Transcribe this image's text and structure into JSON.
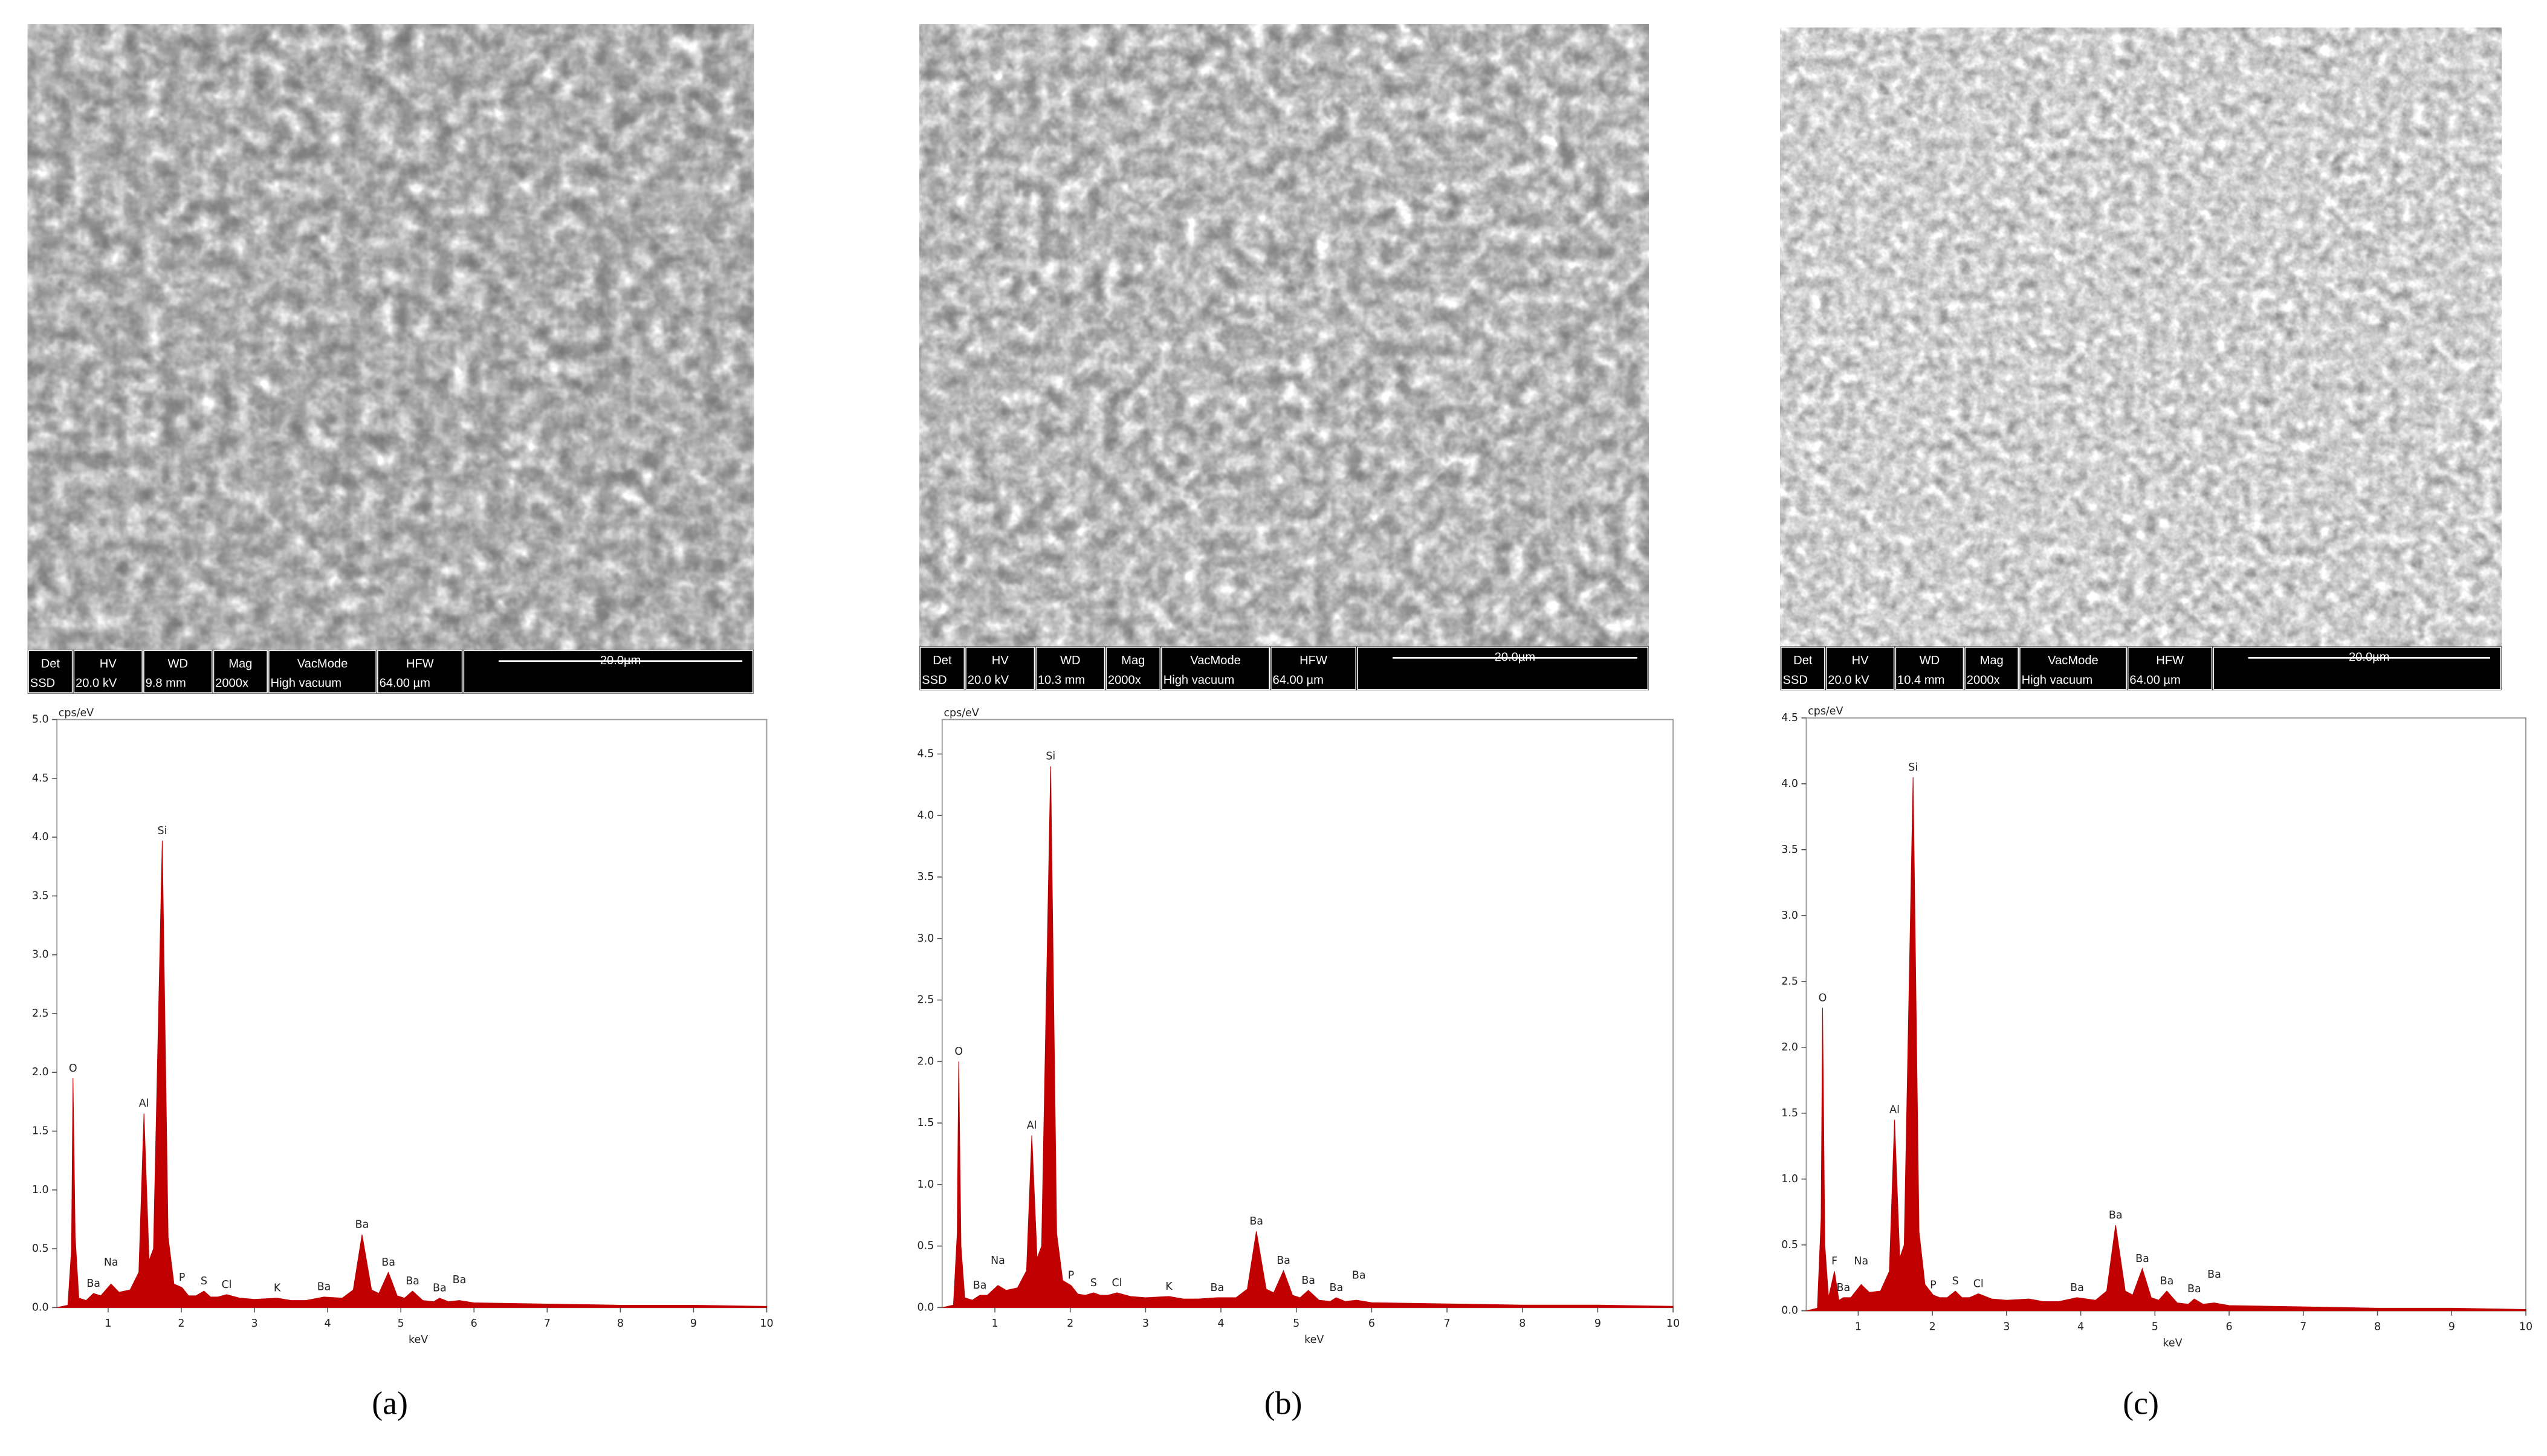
{
  "chart_data": [
    {
      "type": "area",
      "panel_label": "(a)",
      "color": "#c00000",
      "y_label": "cps/eV",
      "x_label": "keV",
      "sem_info": {
        "headers": [
          "Det",
          "HV",
          "WD",
          "Mag",
          "VacMode",
          "HFW"
        ],
        "values": [
          "SSD",
          "20.0 kV",
          "9.8 mm",
          "2000x",
          "High vacuum",
          "64.00 µm"
        ],
        "scale": "20.0µm"
      },
      "xlim": [
        0.3,
        10
      ],
      "xticks": [
        1,
        2,
        3,
        4,
        5,
        6,
        7,
        8,
        9,
        10
      ],
      "ylim": [
        0,
        5
      ],
      "yticks": [
        {
          "value": 0,
          "label": "0.0"
        },
        0.5,
        {
          "value": 1,
          "label": "1.0"
        },
        1.5,
        {
          "value": 2,
          "label": "2.0"
        },
        2.5,
        {
          "value": 3,
          "label": "3.0"
        },
        3.5,
        {
          "value": 4,
          "label": "4.0"
        },
        4.5,
        {
          "value": 5,
          "label": "5.0"
        }
      ],
      "x": [
        0.3,
        0.45,
        0.5,
        0.52,
        0.55,
        0.6,
        0.7,
        0.8,
        0.9,
        1.04,
        1.15,
        1.3,
        1.42,
        1.49,
        1.56,
        1.62,
        1.74,
        1.82,
        1.9,
        2.01,
        2.1,
        2.2,
        2.31,
        2.4,
        2.5,
        2.62,
        2.8,
        3.0,
        3.31,
        3.5,
        3.7,
        3.95,
        4.2,
        4.35,
        4.47,
        4.6,
        4.7,
        4.83,
        4.95,
        5.05,
        5.16,
        5.3,
        5.45,
        5.53,
        5.65,
        5.8,
        6,
        7,
        8,
        9,
        10
      ],
      "values": [
        0,
        0.02,
        0.5,
        1.95,
        0.6,
        0.08,
        0.06,
        0.12,
        0.1,
        0.2,
        0.13,
        0.15,
        0.3,
        1.65,
        0.4,
        0.5,
        3.97,
        0.6,
        0.2,
        0.17,
        0.1,
        0.1,
        0.14,
        0.09,
        0.09,
        0.11,
        0.08,
        0.07,
        0.08,
        0.06,
        0.06,
        0.09,
        0.08,
        0.15,
        0.62,
        0.15,
        0.12,
        0.3,
        0.1,
        0.08,
        0.14,
        0.06,
        0.05,
        0.08,
        0.05,
        0.06,
        0.04,
        0.03,
        0.02,
        0.02,
        0.01
      ],
      "peaks": [
        {
          "label": "O",
          "x": 0.52,
          "y": 1.95
        },
        {
          "label": "Ba",
          "x": 0.8,
          "y": 0.12
        },
        {
          "label": "Na",
          "x": 1.04,
          "y": 0.3
        },
        {
          "label": "Al",
          "x": 1.49,
          "y": 1.65
        },
        {
          "label": "Si",
          "x": 1.74,
          "y": 3.97
        },
        {
          "label": "P",
          "x": 2.01,
          "y": 0.17
        },
        {
          "label": "S",
          "x": 2.31,
          "y": 0.14
        },
        {
          "label": "Cl",
          "x": 2.62,
          "y": 0.11
        },
        {
          "label": "K",
          "x": 3.31,
          "y": 0.08
        },
        {
          "label": "Ba",
          "x": 3.95,
          "y": 0.09
        },
        {
          "label": "Ba",
          "x": 4.47,
          "y": 0.62
        },
        {
          "label": "Ba",
          "x": 4.83,
          "y": 0.3
        },
        {
          "label": "Ba",
          "x": 5.16,
          "y": 0.14
        },
        {
          "label": "Ba",
          "x": 5.53,
          "y": 0.08
        },
        {
          "label": "Ba",
          "x": 5.8,
          "y": 0.15
        }
      ]
    },
    {
      "type": "area",
      "panel_label": "(b)",
      "color": "#c00000",
      "y_label": "cps/eV",
      "x_label": "keV",
      "sem_info": {
        "headers": [
          "Det",
          "HV",
          "WD",
          "Mag",
          "VacMode",
          "HFW"
        ],
        "values": [
          "SSD",
          "20.0 kV",
          "10.3 mm",
          "2000x",
          "High vacuum",
          "64.00 µm"
        ],
        "scale": "20.0µm"
      },
      "xlim": [
        0.3,
        10
      ],
      "xticks": [
        1,
        2,
        3,
        4,
        5,
        6,
        7,
        8,
        9,
        10
      ],
      "ylim": [
        0,
        4.78
      ],
      "yticks": [
        {
          "value": 0,
          "label": "0.0"
        },
        0.5,
        {
          "value": 1,
          "label": "1.0"
        },
        1.5,
        {
          "value": 2,
          "label": "2.0"
        },
        2.5,
        {
          "value": 3,
          "label": "3.0"
        },
        3.5,
        {
          "value": 4,
          "label": "4.0"
        },
        4.5
      ],
      "x": [
        0.3,
        0.45,
        0.5,
        0.52,
        0.55,
        0.6,
        0.7,
        0.8,
        0.9,
        1.04,
        1.15,
        1.3,
        1.42,
        1.49,
        1.56,
        1.62,
        1.74,
        1.82,
        1.9,
        2.01,
        2.1,
        2.2,
        2.31,
        2.4,
        2.5,
        2.62,
        2.8,
        3.0,
        3.31,
        3.5,
        3.7,
        3.95,
        4.2,
        4.35,
        4.47,
        4.6,
        4.7,
        4.83,
        4.95,
        5.05,
        5.16,
        5.3,
        5.45,
        5.53,
        5.65,
        5.8,
        6,
        7,
        8,
        9,
        10
      ],
      "values": [
        0,
        0.02,
        0.6,
        2.0,
        0.5,
        0.08,
        0.06,
        0.1,
        0.1,
        0.18,
        0.14,
        0.16,
        0.3,
        1.4,
        0.4,
        0.5,
        4.4,
        0.6,
        0.22,
        0.18,
        0.11,
        0.1,
        0.12,
        0.1,
        0.1,
        0.12,
        0.09,
        0.08,
        0.09,
        0.07,
        0.07,
        0.08,
        0.08,
        0.15,
        0.62,
        0.15,
        0.12,
        0.3,
        0.1,
        0.08,
        0.14,
        0.06,
        0.05,
        0.08,
        0.05,
        0.06,
        0.04,
        0.03,
        0.02,
        0.02,
        0.01
      ],
      "peaks": [
        {
          "label": "O",
          "x": 0.52,
          "y": 2.0
        },
        {
          "label": "Ba",
          "x": 0.8,
          "y": 0.1
        },
        {
          "label": "Na",
          "x": 1.04,
          "y": 0.3
        },
        {
          "label": "Al",
          "x": 1.49,
          "y": 1.4
        },
        {
          "label": "Si",
          "x": 1.74,
          "y": 4.4
        },
        {
          "label": "P",
          "x": 2.01,
          "y": 0.18
        },
        {
          "label": "S",
          "x": 2.31,
          "y": 0.12
        },
        {
          "label": "Cl",
          "x": 2.62,
          "y": 0.12
        },
        {
          "label": "K",
          "x": 3.31,
          "y": 0.09
        },
        {
          "label": "Ba",
          "x": 3.95,
          "y": 0.08
        },
        {
          "label": "Ba",
          "x": 4.47,
          "y": 0.62
        },
        {
          "label": "Ba",
          "x": 4.83,
          "y": 0.3
        },
        {
          "label": "Ba",
          "x": 5.16,
          "y": 0.14
        },
        {
          "label": "Ba",
          "x": 5.53,
          "y": 0.08
        },
        {
          "label": "Ba",
          "x": 5.83,
          "y": 0.18
        }
      ]
    },
    {
      "type": "area",
      "panel_label": "(c)",
      "color": "#c00000",
      "y_label": "cps/eV",
      "x_label": "keV",
      "sem_info": {
        "headers": [
          "Det",
          "HV",
          "WD",
          "Mag",
          "VacMode",
          "HFW"
        ],
        "values": [
          "SSD",
          "20.0 kV",
          "10.4 mm",
          "2000x",
          "High vacuum",
          "64.00 µm"
        ],
        "scale": "20.0µm"
      },
      "xlim": [
        0.3,
        10
      ],
      "xticks": [
        1,
        2,
        3,
        4,
        5,
        6,
        7,
        8,
        9,
        10
      ],
      "ylim": [
        0,
        4.5
      ],
      "yticks": [
        {
          "value": 0,
          "label": "0.0"
        },
        0.5,
        {
          "value": 1,
          "label": "1.0"
        },
        1.5,
        {
          "value": 2,
          "label": "2.0"
        },
        2.5,
        {
          "value": 3,
          "label": "3.0"
        },
        3.5,
        {
          "value": 4,
          "label": "4.0"
        },
        4.5
      ],
      "x": [
        0.3,
        0.45,
        0.5,
        0.52,
        0.55,
        0.6,
        0.68,
        0.74,
        0.8,
        0.9,
        1.04,
        1.15,
        1.3,
        1.42,
        1.49,
        1.56,
        1.62,
        1.74,
        1.82,
        1.9,
        2.01,
        2.1,
        2.2,
        2.31,
        2.4,
        2.5,
        2.62,
        2.8,
        3.0,
        3.3,
        3.5,
        3.7,
        3.95,
        4.2,
        4.35,
        4.47,
        4.6,
        4.7,
        4.83,
        4.95,
        5.05,
        5.16,
        5.3,
        5.45,
        5.53,
        5.65,
        5.8,
        6,
        7,
        8,
        9,
        10
      ],
      "values": [
        0,
        0.02,
        0.7,
        2.3,
        0.5,
        0.1,
        0.3,
        0.08,
        0.1,
        0.1,
        0.2,
        0.14,
        0.15,
        0.3,
        1.45,
        0.4,
        0.5,
        4.05,
        0.6,
        0.2,
        0.12,
        0.1,
        0.1,
        0.15,
        0.1,
        0.1,
        0.13,
        0.09,
        0.08,
        0.09,
        0.07,
        0.07,
        0.1,
        0.08,
        0.15,
        0.65,
        0.15,
        0.12,
        0.32,
        0.1,
        0.08,
        0.15,
        0.06,
        0.05,
        0.09,
        0.05,
        0.06,
        0.04,
        0.03,
        0.02,
        0.02,
        0.01
      ],
      "peaks": [
        {
          "label": "O",
          "x": 0.52,
          "y": 2.3
        },
        {
          "label": "F",
          "x": 0.68,
          "y": 0.3
        },
        {
          "label": "Ba",
          "x": 0.8,
          "y": 0.1
        },
        {
          "label": "Na",
          "x": 1.04,
          "y": 0.3
        },
        {
          "label": "Al",
          "x": 1.49,
          "y": 1.45
        },
        {
          "label": "Si",
          "x": 1.74,
          "y": 4.05
        },
        {
          "label": "P",
          "x": 2.01,
          "y": 0.12
        },
        {
          "label": "S",
          "x": 2.31,
          "y": 0.15
        },
        {
          "label": "Cl",
          "x": 2.62,
          "y": 0.13
        },
        {
          "label": "Ba",
          "x": 3.95,
          "y": 0.1
        },
        {
          "label": "Ba",
          "x": 4.47,
          "y": 0.65
        },
        {
          "label": "Ba",
          "x": 4.83,
          "y": 0.32
        },
        {
          "label": "Ba",
          "x": 5.16,
          "y": 0.15
        },
        {
          "label": "Ba",
          "x": 5.53,
          "y": 0.09
        },
        {
          "label": "Ba",
          "x": 5.8,
          "y": 0.2
        }
      ]
    }
  ]
}
